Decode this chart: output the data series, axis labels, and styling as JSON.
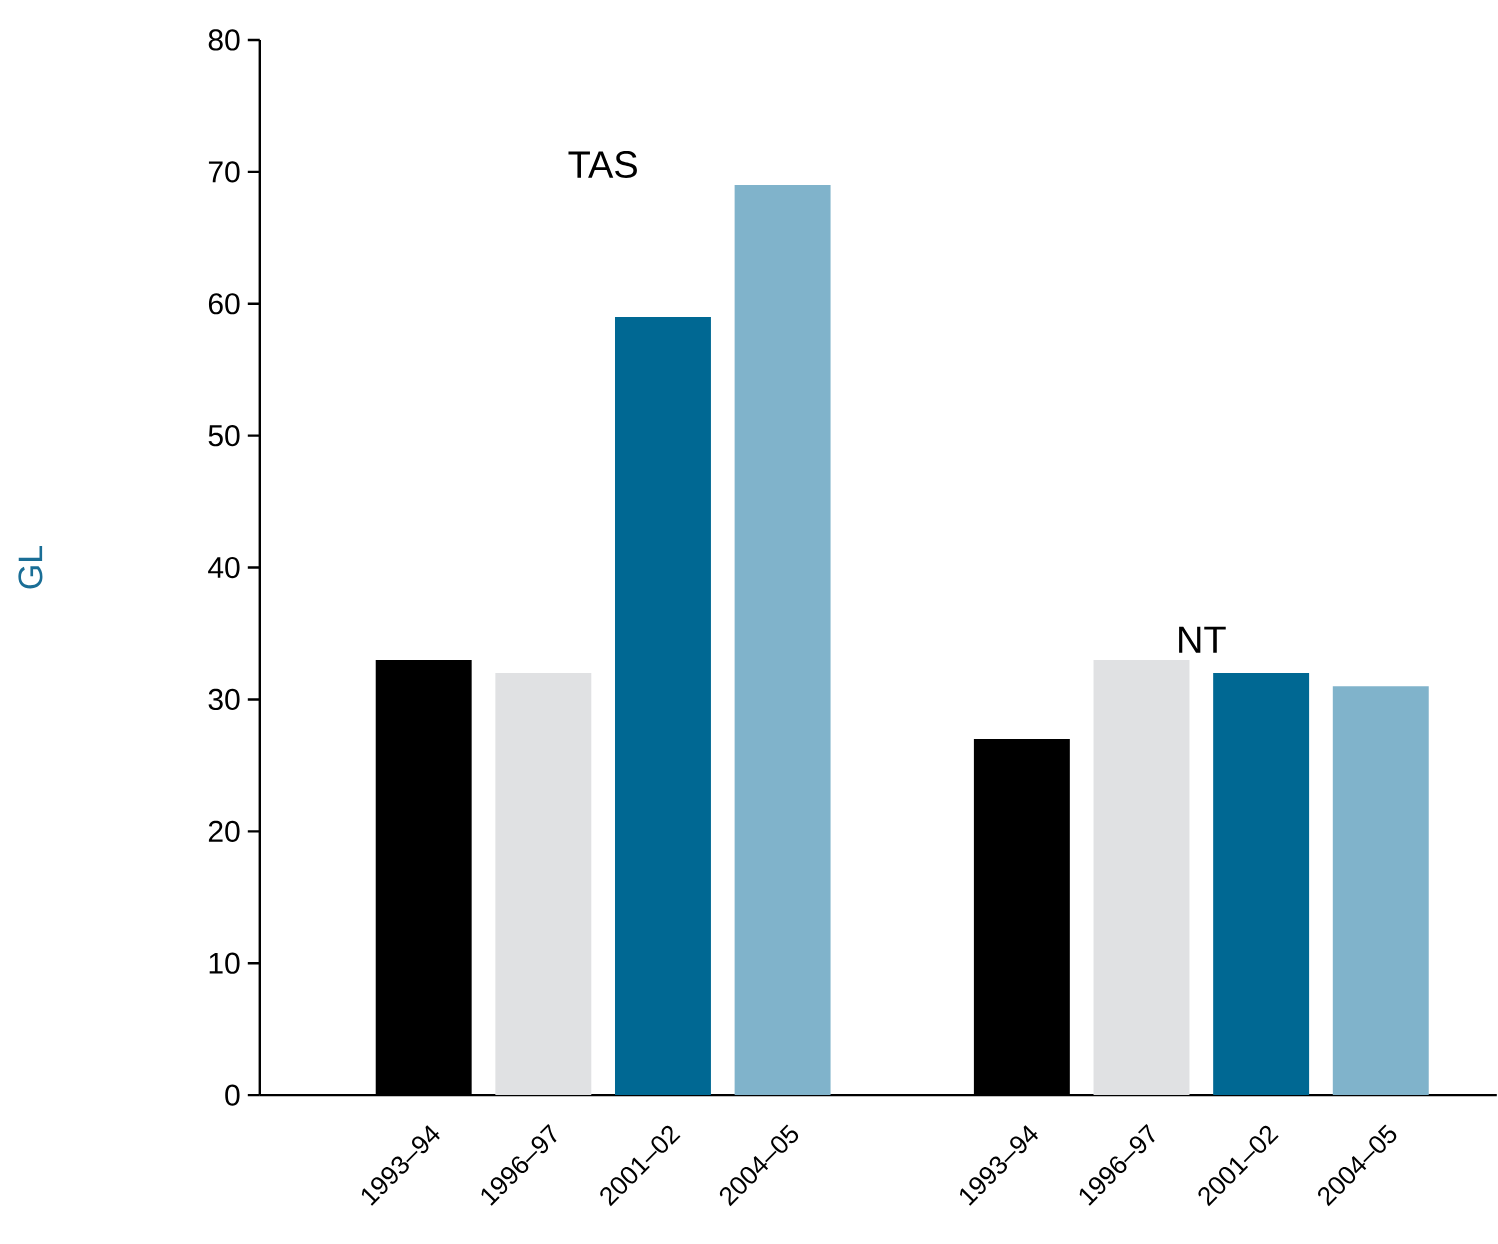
{
  "chart_data": {
    "type": "bar",
    "ylabel": "GL",
    "categories": [
      "1993–94",
      "1996–97",
      "2001–02",
      "2004–05",
      null,
      "1993–94",
      "1996–97",
      "2001–02",
      "2004–05"
    ],
    "values": [
      33,
      32,
      59,
      69,
      null,
      27,
      33,
      32,
      31
    ],
    "colors": [
      "#000000",
      "#e0e1e3",
      "#006893",
      "#80b3cb",
      null,
      "#000000",
      "#e0e1e3",
      "#006893",
      "#80b3cb"
    ],
    "annotations": [
      "TAS",
      "NT"
    ],
    "ylim": [
      0,
      80
    ],
    "yticks": [
      0,
      10,
      20,
      30,
      40,
      50,
      60,
      70,
      80
    ],
    "grid": false
  }
}
